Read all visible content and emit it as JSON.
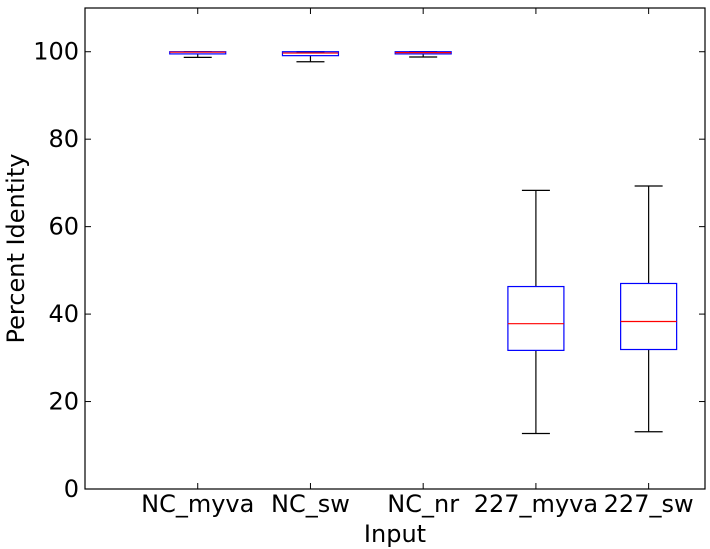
{
  "chart_data": {
    "type": "box",
    "title": "",
    "xlabel": "Input",
    "ylabel": "Percent Identity",
    "ylim": [
      0,
      110
    ],
    "yticks": [
      0,
      20,
      40,
      60,
      80,
      100
    ],
    "ytick_labels": [
      "0",
      "20",
      "40",
      "60",
      "80",
      "100"
    ],
    "categories": [
      "NC_myva",
      "NC_sw",
      "NC_nr",
      "227_myva",
      "227_sw"
    ],
    "boxes": [
      {
        "category": "NC_myva",
        "whisker_low": 98.7,
        "q1": 99.5,
        "median": 99.9,
        "q3": 100.0,
        "whisker_high": 100.0
      },
      {
        "category": "NC_sw",
        "whisker_low": 97.7,
        "q1": 99.1,
        "median": 99.7,
        "q3": 100.0,
        "whisker_high": 100.0
      },
      {
        "category": "NC_nr",
        "whisker_low": 98.8,
        "q1": 99.5,
        "median": 99.8,
        "q3": 100.0,
        "whisker_high": 100.0
      },
      {
        "category": "227_myva",
        "whisker_low": 12.7,
        "q1": 31.7,
        "median": 37.8,
        "q3": 46.3,
        "whisker_high": 68.3
      },
      {
        "category": "227_sw",
        "whisker_low": 13.1,
        "q1": 31.9,
        "median": 38.3,
        "q3": 47.0,
        "whisker_high": 69.3
      }
    ],
    "grid": false,
    "legend": "none",
    "colors": {
      "box": "#0000ff",
      "median": "#ff0000",
      "whisker": "#000000"
    }
  }
}
